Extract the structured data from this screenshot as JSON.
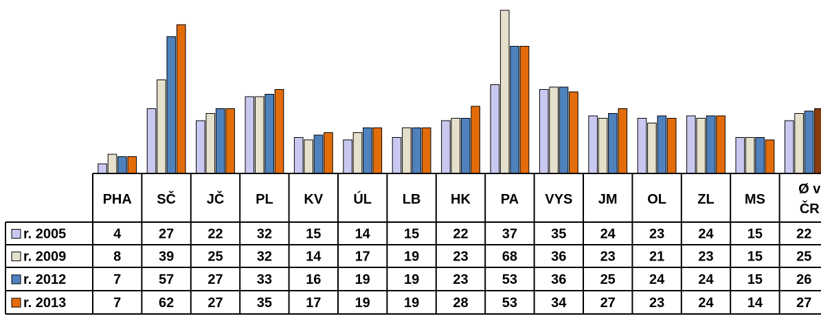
{
  "chart_data": {
    "type": "bar",
    "categories": [
      "PHA",
      "SČ",
      "JČ",
      "PL",
      "KV",
      "ÚL",
      "LB",
      "HK",
      "PA",
      "VYS",
      "JM",
      "OL",
      "ZL",
      "MS",
      "Ø v ČR"
    ],
    "series": [
      {
        "name": "r. 2005",
        "values": [
          4,
          27,
          22,
          32,
          15,
          14,
          15,
          22,
          37,
          35,
          24,
          23,
          24,
          15,
          22
        ],
        "color": "#c8c8f0"
      },
      {
        "name": "r. 2009",
        "values": [
          8,
          39,
          25,
          32,
          14,
          17,
          19,
          23,
          68,
          36,
          23,
          21,
          23,
          15,
          25
        ],
        "color": "#e4e0cc"
      },
      {
        "name": "r. 2012",
        "values": [
          7,
          57,
          27,
          33,
          16,
          19,
          19,
          23,
          53,
          36,
          25,
          24,
          24,
          15,
          26
        ],
        "color": "#4f81bd"
      },
      {
        "name": "r. 2013",
        "values": [
          7,
          62,
          27,
          35,
          17,
          19,
          19,
          28,
          53,
          34,
          27,
          23,
          24,
          14,
          27
        ],
        "color": "#e36c0a"
      }
    ],
    "highlight_last_color": "#8b3a0e",
    "ylim": [
      0,
      68
    ],
    "grid": false,
    "legend": "table-rows-left"
  }
}
